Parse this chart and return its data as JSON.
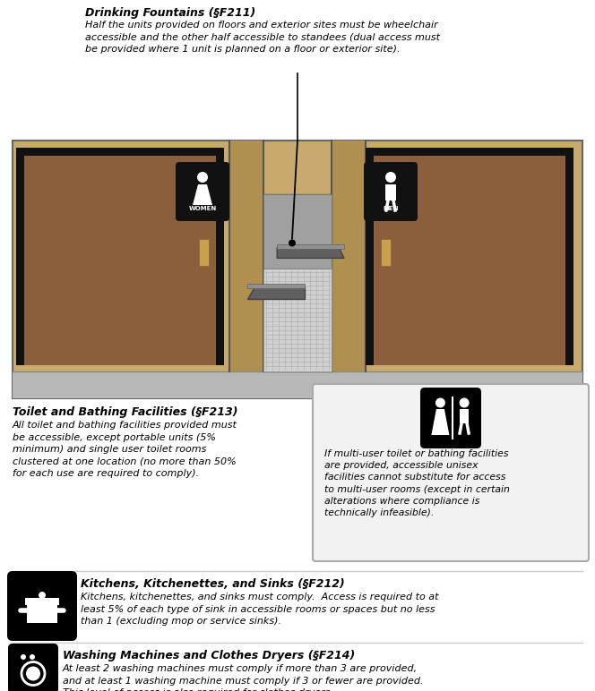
{
  "fig_width": 6.64,
  "fig_height": 7.72,
  "dpi": 100,
  "bg_color": "#ffffff",
  "wall_color": "#c8a96e",
  "wall_mid": "#b09050",
  "door_color": "#8B5E3C",
  "door_frame": "#111111",
  "floor_color": "#b8b8b8",
  "sign_bg": "#111111",
  "text_color": "#000000",
  "box_bg": "#f0f0f0",
  "box_border": "#aaaaaa",
  "title1": "Drinking Fountains (§F211)",
  "body1": "Half the units provided on floors and exterior sites must be wheelchair\naccessible and the other half accessible to standees (dual access must\nbe provided where 1 unit is planned on a floor or exterior site).",
  "title2": "Toilet and Bathing Facilities (§F213)",
  "body2": "All toilet and bathing facilities provided must\nbe accessible, except portable units (5%\nminimum) and single user toilet rooms\nclustered at one location (no more than 50%\nfor each use are required to comply).",
  "body2b": "If multi-user toilet or bathing facilities\nare provided, accessible unisex\nfacilities cannot substitute for access\nto multi-user rooms (except in certain\nalterations where compliance is\ntechnically infeasible).",
  "title3": "Kitchens, Kitchenettes, and Sinks (§F212)",
  "body3": "Kitchens, kitchenettes, and sinks must comply.  Access is required to at\nleast 5% of each type of sink in accessible rooms or spaces but no less\nthan 1 (excluding mop or service sinks).",
  "title4": "Washing Machines and Clothes Dryers (§F214)",
  "body4": "At least 2 washing machines must comply if more than 3 are provided,\nand at least 1 washing machine must comply if 3 or fewer are provided.\nThis level of access is also required for clothes dryers."
}
